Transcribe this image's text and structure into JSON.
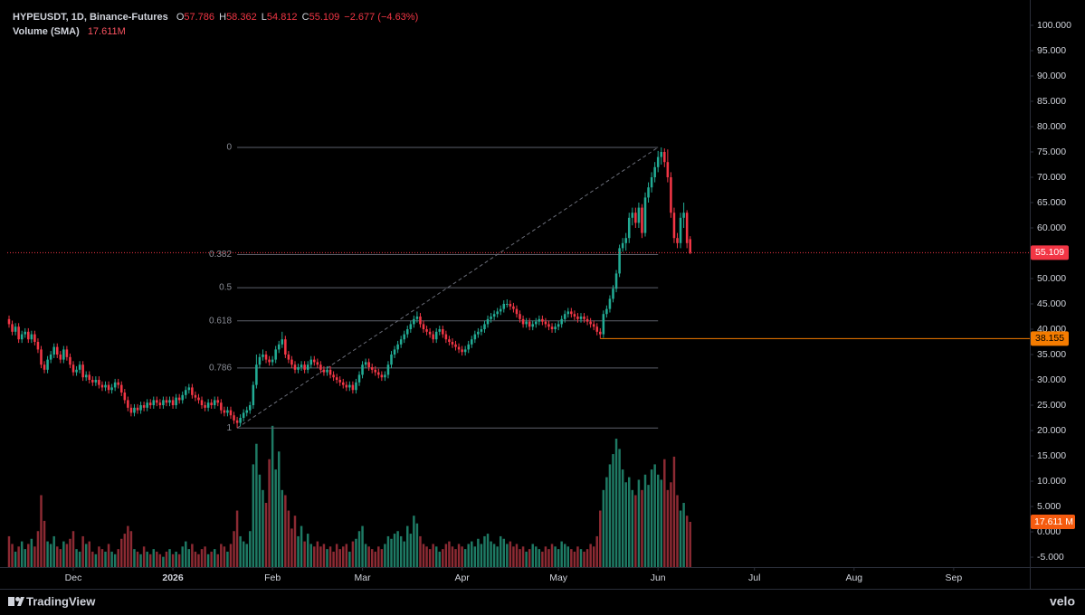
{
  "chart_data": {
    "type": "candlestick",
    "title": "HYPEUSDT, 1D, Binance-Futures",
    "ohlc_labels": [
      "O",
      "H",
      "L",
      "C"
    ],
    "change_label": "−2.677 (−4.63%)",
    "volume_title": "Volume (SMA)",
    "volume_legend": "17.611M",
    "volume_tag": "17.611 M",
    "up_color": "#22ab94",
    "down_color": "#f23645",
    "ylim": [
      -6.96,
      103.57
    ],
    "yticks": [
      {
        "value": 100,
        "label": "100.000"
      },
      {
        "value": 95,
        "label": "95.000"
      },
      {
        "value": 90,
        "label": "90.000"
      },
      {
        "value": 85,
        "label": "85.000"
      },
      {
        "value": 80,
        "label": "80.000"
      },
      {
        "value": 75,
        "label": "75.000"
      },
      {
        "value": 70,
        "label": "70.000"
      },
      {
        "value": 65,
        "label": "65.000"
      },
      {
        "value": 60,
        "label": "60.000"
      },
      {
        "value": 55,
        "label": "55.000"
      },
      {
        "value": 50,
        "label": "50.000"
      },
      {
        "value": 45,
        "label": "45.000"
      },
      {
        "value": 40,
        "label": "40.000"
      },
      {
        "value": 35,
        "label": "35.000"
      },
      {
        "value": 30,
        "label": "30.000"
      },
      {
        "value": 25,
        "label": "25.000"
      },
      {
        "value": 20,
        "label": "20.000"
      },
      {
        "value": 15,
        "label": "15.000"
      },
      {
        "value": 10,
        "label": "10.000"
      },
      {
        "value": 5,
        "label": "5.000"
      },
      {
        "value": 0,
        "label": "0.000"
      },
      {
        "value": -5,
        "label": "-5.000"
      }
    ],
    "xlim": [
      -0.56,
      317.7
    ],
    "xticks": [
      {
        "value": 20,
        "label": "Dec"
      },
      {
        "value": 51,
        "label": "2026"
      },
      {
        "value": 82,
        "label": "Feb"
      },
      {
        "value": 110,
        "label": "Mar"
      },
      {
        "value": 141,
        "label": "Apr"
      },
      {
        "value": 171,
        "label": "May"
      },
      {
        "value": 202,
        "label": "Jun"
      },
      {
        "value": 232,
        "label": "Jul"
      },
      {
        "value": 263,
        "label": "Aug"
      },
      {
        "value": 294,
        "label": "Sep"
      }
    ],
    "volume_ylim": [
      0,
      218
    ],
    "fib": {
      "start_index": 71,
      "end_index": 202,
      "start_price": 20.5,
      "end_price": 75.9,
      "levels": [
        0,
        0.382,
        0.5,
        0.618,
        0.786,
        1
      ]
    },
    "level_line": {
      "value": 38.155,
      "start_index": 184,
      "color": "#f57c00"
    },
    "ohlc": [
      [
        42,
        42.7,
        40.3,
        41
      ],
      [
        41,
        41.7,
        38.8,
        39.5
      ],
      [
        39.5,
        41.2,
        38.8,
        40.5
      ],
      [
        40.5,
        41.2,
        37.3,
        38
      ],
      [
        38,
        39.7,
        37.3,
        39
      ],
      [
        39,
        40.2,
        38.3,
        39.5
      ],
      [
        39.5,
        40.2,
        37.3,
        38
      ],
      [
        38,
        39.7,
        37.3,
        39
      ],
      [
        39,
        39.7,
        36.8,
        37.5
      ],
      [
        37.5,
        38.2,
        35.3,
        36
      ],
      [
        36,
        36.7,
        32.3,
        33
      ],
      [
        33,
        33.7,
        31.3,
        32
      ],
      [
        32,
        34.7,
        31.3,
        34
      ],
      [
        34,
        35.7,
        33.3,
        35
      ],
      [
        35,
        37.2,
        34.3,
        36.5
      ],
      [
        36.5,
        37.2,
        34.3,
        35
      ],
      [
        35,
        35.7,
        33.3,
        34
      ],
      [
        34,
        36.7,
        33.3,
        36
      ],
      [
        36,
        36.7,
        33.8,
        34.5
      ],
      [
        34.5,
        35.2,
        32.3,
        33
      ],
      [
        33,
        33.7,
        30.8,
        31.5
      ],
      [
        31.5,
        32.7,
        30.8,
        32
      ],
      [
        32,
        33.7,
        31.3,
        33
      ],
      [
        33,
        33.7,
        29.8,
        30.5
      ],
      [
        30.5,
        31.7,
        29.8,
        31
      ],
      [
        31,
        31.7,
        29.3,
        30
      ],
      [
        30,
        30.7,
        28.8,
        29.5
      ],
      [
        29.5,
        30.7,
        28.8,
        30
      ],
      [
        30,
        30.7,
        28.3,
        29
      ],
      [
        29,
        29.7,
        27.8,
        28.5
      ],
      [
        28.5,
        29.7,
        27.8,
        29
      ],
      [
        29,
        29.7,
        27.3,
        28
      ],
      [
        28,
        29.2,
        27.3,
        28.5
      ],
      [
        28.5,
        30.2,
        27.8,
        29.5
      ],
      [
        29.5,
        30.2,
        28.3,
        29
      ],
      [
        29,
        29.7,
        26.8,
        27.5
      ],
      [
        27.5,
        28.2,
        25.3,
        26
      ],
      [
        26,
        26.7,
        23.8,
        24.5
      ],
      [
        24.5,
        25.2,
        22.8,
        23.5
      ],
      [
        23.5,
        25.2,
        22.8,
        24.5
      ],
      [
        24.5,
        25.2,
        23.3,
        24
      ],
      [
        24,
        25.7,
        23.3,
        25
      ],
      [
        25,
        25.7,
        23.8,
        24.5
      ],
      [
        24.5,
        26.2,
        23.8,
        25.5
      ],
      [
        25.5,
        26.2,
        24.3,
        25
      ],
      [
        25,
        26.7,
        24.3,
        26
      ],
      [
        26,
        26.7,
        24.8,
        25.5
      ],
      [
        25.5,
        26.2,
        24.3,
        25
      ],
      [
        25,
        26.7,
        24.3,
        26
      ],
      [
        26,
        26.7,
        24.8,
        25.5
      ],
      [
        25.5,
        26.7,
        24.8,
        26
      ],
      [
        26,
        26.7,
        24.3,
        25
      ],
      [
        25,
        27.2,
        24.3,
        26.5
      ],
      [
        26.5,
        27.2,
        25.3,
        26
      ],
      [
        26,
        27.7,
        25.3,
        27
      ],
      [
        27,
        28.7,
        26.3,
        28
      ],
      [
        28,
        29.2,
        27.3,
        28.5
      ],
      [
        28.5,
        29.2,
        26.3,
        27
      ],
      [
        27,
        27.7,
        25.8,
        26.5
      ],
      [
        26.5,
        27.2,
        25.3,
        26
      ],
      [
        26,
        26.7,
        24.3,
        25
      ],
      [
        25,
        25.7,
        23.8,
        24.5
      ],
      [
        24.5,
        26.2,
        23.8,
        25.5
      ],
      [
        25.5,
        26.2,
        24.3,
        25
      ],
      [
        25,
        26.7,
        24.3,
        26
      ],
      [
        26,
        26.7,
        24.8,
        25.5
      ],
      [
        25.5,
        26.2,
        23.3,
        24
      ],
      [
        24,
        24.7,
        22.8,
        23.5
      ],
      [
        23.5,
        24.7,
        22.8,
        24
      ],
      [
        24,
        24.7,
        22.3,
        23
      ],
      [
        23,
        23.7,
        21.3,
        22
      ],
      [
        22,
        22.7,
        20.5,
        21.5
      ],
      [
        21.5,
        23.2,
        20.8,
        22.5
      ],
      [
        22.5,
        24.2,
        21.8,
        23.5
      ],
      [
        23.5,
        24.7,
        22.8,
        24
      ],
      [
        24,
        25.7,
        23.3,
        25
      ],
      [
        25,
        29.7,
        24.3,
        29
      ],
      [
        29,
        35,
        28.3,
        33
      ],
      [
        33,
        35.2,
        32.3,
        34.5
      ],
      [
        34.5,
        36,
        33.8,
        35
      ],
      [
        35,
        35.7,
        33.3,
        34
      ],
      [
        34,
        34.7,
        32.8,
        33.5
      ],
      [
        33.5,
        34.7,
        32.8,
        34
      ],
      [
        34,
        36.7,
        33.3,
        36
      ],
      [
        36,
        37.7,
        35.3,
        37
      ],
      [
        37,
        39.5,
        36.3,
        38
      ],
      [
        38,
        38.7,
        34.3,
        35
      ],
      [
        35,
        35.7,
        33.3,
        34
      ],
      [
        34,
        34.7,
        32.3,
        33
      ],
      [
        33,
        33.7,
        31.3,
        32
      ],
      [
        32,
        33.2,
        31.3,
        32.5
      ],
      [
        32.5,
        33.7,
        31.8,
        33
      ],
      [
        33,
        33.7,
        31.3,
        32
      ],
      [
        32,
        33.7,
        31.3,
        33
      ],
      [
        33,
        34.7,
        32.3,
        34
      ],
      [
        34,
        34.7,
        32.8,
        33.5
      ],
      [
        33.5,
        34.2,
        32.3,
        33
      ],
      [
        33,
        33.7,
        31.3,
        32
      ],
      [
        32,
        32.7,
        30.8,
        31.5
      ],
      [
        31.5,
        32.7,
        30.8,
        32
      ],
      [
        32,
        32.7,
        30.3,
        31
      ],
      [
        31,
        31.7,
        29.8,
        30.5
      ],
      [
        30.5,
        31.2,
        29.3,
        30
      ],
      [
        30,
        30.7,
        28.8,
        29.5
      ],
      [
        29.5,
        30.2,
        28.3,
        29
      ],
      [
        29,
        29.7,
        27.8,
        28.5
      ],
      [
        28.5,
        29.7,
        27.8,
        29
      ],
      [
        29,
        29.7,
        27.3,
        28
      ],
      [
        28,
        30.2,
        27.3,
        29.5
      ],
      [
        29.5,
        31.7,
        28.8,
        31
      ],
      [
        31,
        33.7,
        30.3,
        33
      ],
      [
        33,
        34.2,
        32.3,
        33.5
      ],
      [
        33.5,
        34.2,
        31.8,
        32.5
      ],
      [
        32.5,
        33.2,
        31.3,
        32
      ],
      [
        32,
        32.7,
        30.8,
        31.5
      ],
      [
        31.5,
        32.2,
        30.3,
        31
      ],
      [
        31,
        31.7,
        29.8,
        30.5
      ],
      [
        30.5,
        31.7,
        29.8,
        31
      ],
      [
        31,
        33.7,
        30.3,
        33
      ],
      [
        33,
        35.7,
        32.3,
        35
      ],
      [
        35,
        36.7,
        34.3,
        36
      ],
      [
        36,
        37.7,
        35.3,
        37
      ],
      [
        37,
        38.7,
        36.3,
        38
      ],
      [
        38,
        39.7,
        37.3,
        39
      ],
      [
        39,
        40.7,
        38.3,
        40
      ],
      [
        40,
        41.7,
        39.3,
        41
      ],
      [
        41,
        42.7,
        40.3,
        42
      ],
      [
        42,
        43.5,
        41.3,
        42.5
      ],
      [
        42.5,
        43.2,
        40.3,
        41
      ],
      [
        41,
        41.7,
        39.3,
        40
      ],
      [
        40,
        40.7,
        38.8,
        39.5
      ],
      [
        39.5,
        40.2,
        38.3,
        39
      ],
      [
        39,
        39.7,
        37.3,
        38
      ],
      [
        38,
        40.2,
        37.3,
        39.5
      ],
      [
        39.5,
        40.7,
        38.8,
        40
      ],
      [
        40,
        40.7,
        38.3,
        39
      ],
      [
        39,
        39.7,
        37.3,
        38
      ],
      [
        38,
        38.7,
        36.8,
        37.5
      ],
      [
        37.5,
        38.2,
        36.3,
        37
      ],
      [
        37,
        37.7,
        35.8,
        36.5
      ],
      [
        36.5,
        37.2,
        35.3,
        36
      ],
      [
        36,
        36.7,
        34.8,
        35.5
      ],
      [
        35.5,
        36.7,
        34.8,
        36
      ],
      [
        36,
        37.7,
        35.3,
        37
      ],
      [
        37,
        38.7,
        36.3,
        38
      ],
      [
        38,
        39.7,
        37.3,
        39
      ],
      [
        39,
        40.2,
        38.3,
        39.5
      ],
      [
        39.5,
        40.7,
        38.8,
        40
      ],
      [
        40,
        41.7,
        39.3,
        41
      ],
      [
        41,
        42.7,
        40.3,
        42
      ],
      [
        42,
        43.2,
        41.3,
        42.5
      ],
      [
        42.5,
        43.7,
        41.8,
        43
      ],
      [
        43,
        44.2,
        42.3,
        43.5
      ],
      [
        43.5,
        44.7,
        42.8,
        44
      ],
      [
        44,
        45.7,
        43.3,
        45
      ],
      [
        45,
        45.9,
        44.3,
        45
      ],
      [
        45,
        45.7,
        43.8,
        44.5
      ],
      [
        44.5,
        45.2,
        43.3,
        44
      ],
      [
        44,
        44.7,
        42.3,
        43
      ],
      [
        43,
        43.7,
        41.3,
        42
      ],
      [
        42,
        42.7,
        40.3,
        41
      ],
      [
        41,
        42.2,
        40.3,
        41.5
      ],
      [
        41.5,
        42.2,
        39.8,
        40.5
      ],
      [
        40.5,
        41.7,
        39.8,
        41
      ],
      [
        41,
        42.2,
        40.3,
        41.5
      ],
      [
        41.5,
        42.7,
        40.8,
        42
      ],
      [
        42,
        42.7,
        40.8,
        41.5
      ],
      [
        41.5,
        42.2,
        40.3,
        41
      ],
      [
        41,
        41.7,
        39.8,
        40.5
      ],
      [
        40.5,
        41.2,
        39.3,
        40
      ],
      [
        40,
        41.2,
        39.3,
        40.5
      ],
      [
        40.5,
        41.7,
        39.8,
        41
      ],
      [
        41,
        42.7,
        40.3,
        42
      ],
      [
        42,
        43.7,
        41.3,
        43
      ],
      [
        43,
        44.2,
        42.3,
        43.5
      ],
      [
        43.5,
        44.2,
        42.3,
        43
      ],
      [
        43,
        43.7,
        41.8,
        42.5
      ],
      [
        42.5,
        43.2,
        41.3,
        42
      ],
      [
        42,
        43.2,
        41.3,
        42.5
      ],
      [
        42.5,
        43.2,
        41.3,
        42
      ],
      [
        42,
        42.7,
        40.8,
        41.5
      ],
      [
        41.5,
        42.2,
        40.3,
        41
      ],
      [
        41,
        41.7,
        39.8,
        40.5
      ],
      [
        40.5,
        41.2,
        38.8,
        39.5
      ],
      [
        39.5,
        40.2,
        38.155,
        39
      ],
      [
        39,
        43.7,
        38.3,
        43
      ],
      [
        43,
        44.7,
        42.3,
        44
      ],
      [
        44,
        46.7,
        43.3,
        46
      ],
      [
        46,
        48.7,
        45.3,
        48
      ],
      [
        48,
        51.7,
        47.3,
        51
      ],
      [
        51,
        56.7,
        50.3,
        56
      ],
      [
        56,
        58,
        55.3,
        57
      ],
      [
        57,
        59,
        55.5,
        58
      ],
      [
        58,
        63,
        57,
        62
      ],
      [
        62,
        64,
        60.5,
        63
      ],
      [
        63,
        64,
        60,
        61
      ],
      [
        61,
        65,
        60,
        64
      ],
      [
        64,
        64.7,
        58,
        59
      ],
      [
        59,
        67,
        58.3,
        66
      ],
      [
        66,
        69,
        65,
        68
      ],
      [
        68,
        71,
        67,
        70
      ],
      [
        70,
        73,
        69,
        72
      ],
      [
        72,
        75.2,
        71,
        74
      ],
      [
        74,
        75.9,
        72.5,
        75
      ],
      [
        75,
        75.7,
        72,
        73
      ],
      [
        73,
        75.5,
        69,
        70
      ],
      [
        70,
        71,
        62,
        63
      ],
      [
        63,
        64,
        57,
        58
      ],
      [
        58,
        59,
        56,
        57
      ],
      [
        57,
        63,
        56,
        62
      ],
      [
        62,
        65,
        60,
        63
      ],
      [
        63,
        63.5,
        56,
        57
      ],
      [
        57.786,
        58.362,
        54.812,
        55.109
      ]
    ],
    "volume": [
      12,
      9,
      6,
      8,
      10,
      7,
      9,
      11,
      8,
      14,
      28,
      18,
      10,
      9,
      12,
      8,
      7,
      10,
      9,
      11,
      14,
      7,
      6,
      12,
      9,
      10,
      6,
      5,
      8,
      7,
      6,
      9,
      6,
      5,
      7,
      11,
      13,
      16,
      14,
      7,
      6,
      5,
      8,
      6,
      5,
      7,
      6,
      5,
      4,
      6,
      7,
      5,
      6,
      5,
      8,
      10,
      7,
      9,
      6,
      5,
      7,
      8,
      5,
      6,
      7,
      5,
      9,
      8,
      6,
      9,
      14,
      22,
      12,
      10,
      9,
      14,
      40,
      48,
      36,
      30,
      25,
      42,
      55,
      38,
      45,
      30,
      28,
      22,
      15,
      20,
      12,
      16,
      10,
      13,
      9,
      8,
      10,
      8,
      9,
      7,
      8,
      6,
      9,
      7,
      8,
      9,
      6,
      10,
      11,
      14,
      16,
      9,
      8,
      7,
      6,
      8,
      7,
      9,
      12,
      11,
      13,
      14,
      12,
      10,
      16,
      13,
      20,
      17,
      12,
      9,
      8,
      7,
      9,
      8,
      6,
      7,
      9,
      10,
      8,
      7,
      9,
      8,
      7,
      9,
      10,
      8,
      11,
      9,
      12,
      13,
      10,
      9,
      8,
      12,
      11,
      9,
      10,
      8,
      9,
      7,
      8,
      6,
      7,
      9,
      8,
      7,
      6,
      8,
      7,
      9,
      8,
      7,
      10,
      9,
      8,
      7,
      6,
      8,
      7,
      6,
      7,
      9,
      8,
      12,
      22,
      30,
      35,
      40,
      44,
      50,
      46,
      38,
      33,
      35,
      30,
      28,
      34,
      30,
      36,
      32,
      38,
      40,
      36,
      34,
      42,
      30,
      33,
      43,
      28,
      22,
      25,
      20,
      17.611
    ]
  },
  "footer": {
    "logo": "TradingView",
    "watermark": "velo"
  }
}
